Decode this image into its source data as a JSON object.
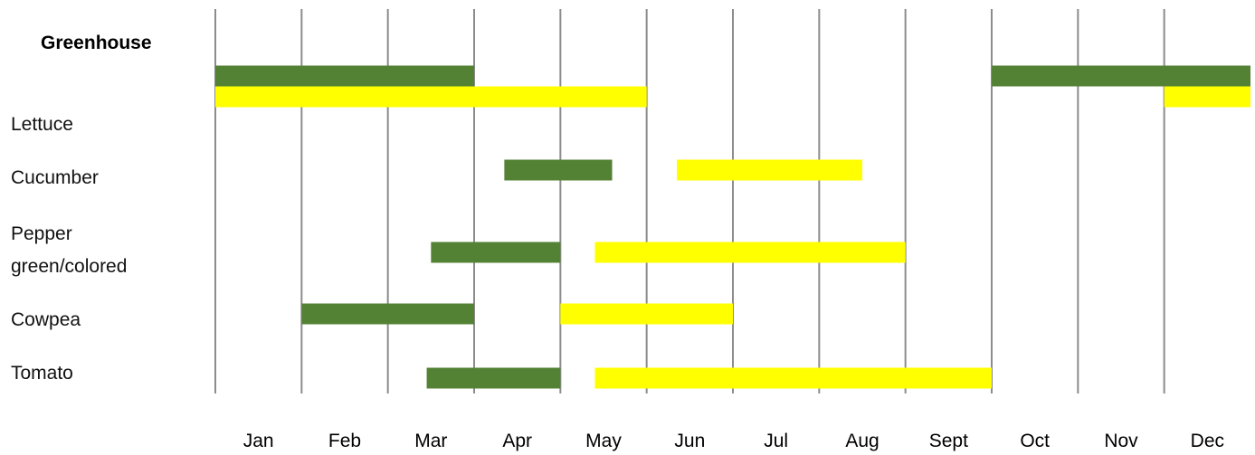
{
  "chart_data": {
    "type": "gantt",
    "title": "Greenhouse",
    "categories": [
      "Jan",
      "Feb",
      "Mar",
      "Apr",
      "May",
      "Jun",
      "Jul",
      "Aug",
      "Sept",
      "Oct",
      "Nov",
      "Dec"
    ],
    "xlim": [
      0,
      12
    ],
    "rows": [
      {
        "label": "Lettuce",
        "bars": [
          {
            "start": 0,
            "end": 3,
            "color": "#548235"
          },
          {
            "start": 9,
            "end": 12,
            "color": "#548235"
          },
          {
            "start": 0,
            "end": 5,
            "color": "#ffff00"
          },
          {
            "start": 11,
            "end": 12,
            "color": "#ffff00"
          }
        ]
      },
      {
        "label": "Cucumber",
        "bars": [
          {
            "start": 3.35,
            "end": 4.6,
            "color": "#548235"
          },
          {
            "start": 5.35,
            "end": 7.5,
            "color": "#ffff00"
          }
        ]
      },
      {
        "label": "Pepper green/colored",
        "bars": [
          {
            "start": 2.5,
            "end": 4,
            "color": "#548235"
          },
          {
            "start": 4.4,
            "end": 8,
            "color": "#ffff00"
          }
        ]
      },
      {
        "label": "Cowpea",
        "bars": [
          {
            "start": 1,
            "end": 3,
            "color": "#548235"
          },
          {
            "start": 4,
            "end": 6,
            "color": "#ffff00"
          }
        ]
      },
      {
        "label": "Tomato",
        "bars": [
          {
            "start": 2.45,
            "end": 4,
            "color": "#548235"
          },
          {
            "start": 4.4,
            "end": 9,
            "color": "#ffff00"
          }
        ]
      }
    ]
  }
}
